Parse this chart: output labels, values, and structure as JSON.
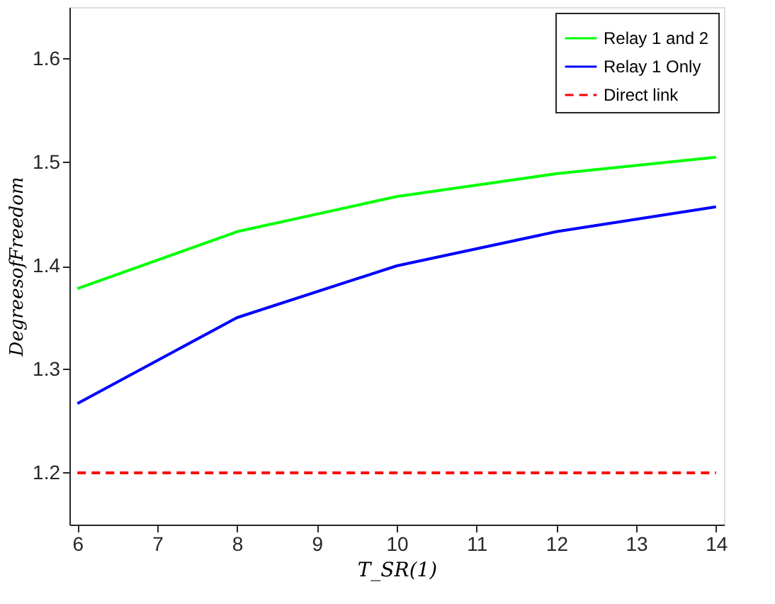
{
  "chart_data": {
    "type": "line",
    "xlabel": "T_SR(1)",
    "ylabel": "DegreesofFreedom",
    "x": [
      6,
      8,
      10,
      12,
      14
    ],
    "series": [
      {
        "name": "Relay 1 and 2",
        "color": "#00ff00",
        "values": [
          1.378,
          1.433,
          1.467,
          1.489,
          1.505
        ],
        "line_style": "solid"
      },
      {
        "name": "Relay 1 Only",
        "color": "#0000ff",
        "values": [
          1.267,
          1.35,
          1.4,
          1.433,
          1.457
        ],
        "line_style": "solid"
      },
      {
        "name": "Direct link",
        "color": "#ff0000",
        "values": [
          1.2,
          1.2,
          1.2,
          1.2,
          1.2
        ],
        "line_style": "dashed"
      }
    ],
    "xlim": [
      5.9,
      14.1
    ],
    "xticks": [
      6,
      7,
      8,
      9,
      10,
      11,
      12,
      13,
      14
    ],
    "ylim": [
      1.15,
      1.65
    ],
    "yticks": [
      1.2,
      1.3,
      1.4,
      1.5,
      1.6
    ],
    "grid": false,
    "legend": "top right",
    "marker": "none"
  }
}
